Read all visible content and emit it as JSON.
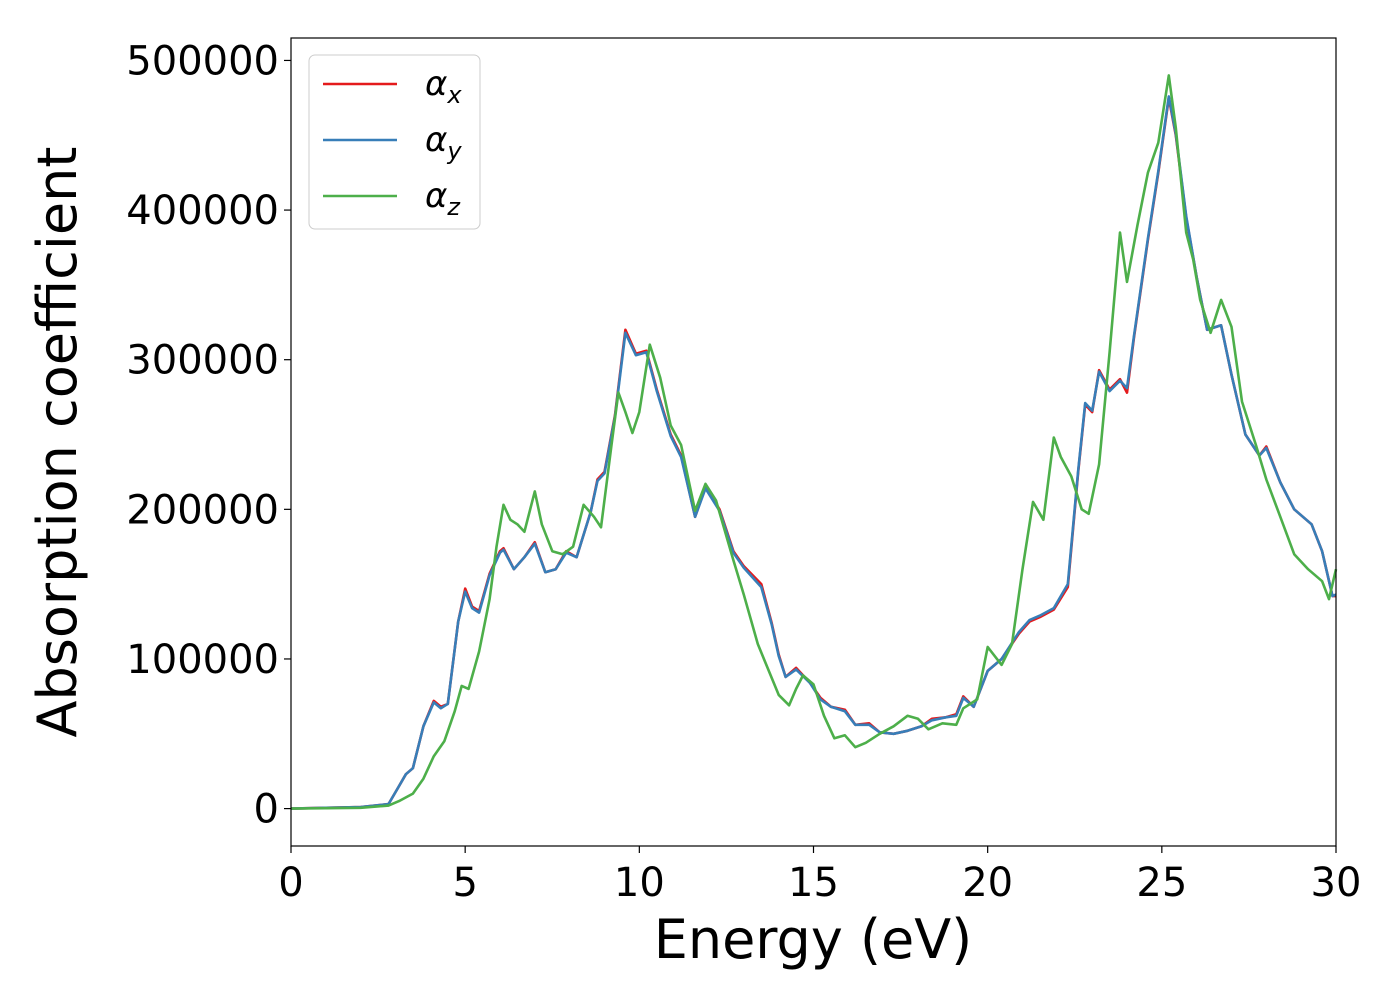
{
  "chart_data": {
    "type": "line",
    "title": "",
    "xlabel": "Energy (eV)",
    "ylabel": "Absorption coefficient",
    "xlim": [
      0,
      30
    ],
    "ylim": [
      -25000,
      515000
    ],
    "x_ticks": [
      0,
      5,
      10,
      15,
      20,
      25,
      30
    ],
    "x_tick_labels": [
      "0",
      "5",
      "10",
      "15",
      "20",
      "25",
      "30"
    ],
    "y_ticks": [
      0,
      100000,
      200000,
      300000,
      400000,
      500000
    ],
    "y_tick_labels": [
      "0",
      "100000",
      "200000",
      "300000",
      "400000",
      "500000"
    ],
    "grid": false,
    "legend_position": "top-left",
    "series": [
      {
        "name": "αx",
        "symbol": "α",
        "subscript": "x",
        "color": "#e41a1c",
        "points": [
          [
            0,
            0
          ],
          [
            2,
            1000
          ],
          [
            2.8,
            3000
          ],
          [
            3.1,
            15000
          ],
          [
            3.3,
            23000
          ],
          [
            3.5,
            27000
          ],
          [
            3.8,
            55000
          ],
          [
            4.1,
            72000
          ],
          [
            4.3,
            68000
          ],
          [
            4.5,
            70000
          ],
          [
            4.8,
            125000
          ],
          [
            5.0,
            147000
          ],
          [
            5.2,
            135000
          ],
          [
            5.4,
            132000
          ],
          [
            5.7,
            157000
          ],
          [
            6.0,
            172000
          ],
          [
            6.1,
            174000
          ],
          [
            6.4,
            160000
          ],
          [
            6.7,
            168000
          ],
          [
            7.0,
            178000
          ],
          [
            7.3,
            158000
          ],
          [
            7.6,
            160000
          ],
          [
            7.9,
            172000
          ],
          [
            8.2,
            168000
          ],
          [
            8.6,
            198000
          ],
          [
            8.8,
            220000
          ],
          [
            9.0,
            225000
          ],
          [
            9.3,
            263000
          ],
          [
            9.6,
            320000
          ],
          [
            9.9,
            304000
          ],
          [
            10.2,
            306000
          ],
          [
            10.5,
            280000
          ],
          [
            10.9,
            250000
          ],
          [
            11.2,
            236000
          ],
          [
            11.6,
            195000
          ],
          [
            11.9,
            215000
          ],
          [
            12.3,
            200000
          ],
          [
            12.7,
            172000
          ],
          [
            13.0,
            162000
          ],
          [
            13.5,
            150000
          ],
          [
            13.8,
            124000
          ],
          [
            14.0,
            103000
          ],
          [
            14.2,
            88000
          ],
          [
            14.5,
            94000
          ],
          [
            14.9,
            84000
          ],
          [
            15.2,
            74000
          ],
          [
            15.5,
            68000
          ],
          [
            15.9,
            66000
          ],
          [
            16.2,
            56000
          ],
          [
            16.6,
            57000
          ],
          [
            16.9,
            51000
          ],
          [
            17.3,
            50000
          ],
          [
            17.7,
            52000
          ],
          [
            18.1,
            55000
          ],
          [
            18.4,
            60000
          ],
          [
            18.8,
            61000
          ],
          [
            19.1,
            63000
          ],
          [
            19.3,
            75000
          ],
          [
            19.6,
            68000
          ],
          [
            20.0,
            92000
          ],
          [
            20.4,
            100000
          ],
          [
            20.9,
            117000
          ],
          [
            21.2,
            125000
          ],
          [
            21.5,
            128000
          ],
          [
            21.9,
            133000
          ],
          [
            22.3,
            148000
          ],
          [
            22.6,
            225000
          ],
          [
            22.8,
            270000
          ],
          [
            23.0,
            265000
          ],
          [
            23.2,
            293000
          ],
          [
            23.5,
            280000
          ],
          [
            23.8,
            287000
          ],
          [
            24.0,
            278000
          ],
          [
            24.2,
            315000
          ],
          [
            24.6,
            380000
          ],
          [
            24.9,
            425000
          ],
          [
            25.2,
            475000
          ],
          [
            25.4,
            450000
          ],
          [
            25.7,
            395000
          ],
          [
            26.0,
            355000
          ],
          [
            26.3,
            320000
          ],
          [
            26.7,
            323000
          ],
          [
            27.0,
            290000
          ],
          [
            27.4,
            250000
          ],
          [
            27.8,
            236000
          ],
          [
            28.0,
            242000
          ],
          [
            28.4,
            218000
          ],
          [
            28.8,
            200000
          ],
          [
            29.3,
            190000
          ],
          [
            29.6,
            172000
          ],
          [
            29.9,
            142000
          ],
          [
            30.0,
            142000
          ]
        ]
      },
      {
        "name": "αy",
        "symbol": "α",
        "subscript": "y",
        "color": "#377eb8",
        "points": [
          [
            0,
            0
          ],
          [
            2,
            1000
          ],
          [
            2.8,
            3000
          ],
          [
            3.1,
            15000
          ],
          [
            3.3,
            23000
          ],
          [
            3.5,
            27000
          ],
          [
            3.8,
            55000
          ],
          [
            4.1,
            71000
          ],
          [
            4.3,
            67000
          ],
          [
            4.5,
            70000
          ],
          [
            4.8,
            125000
          ],
          [
            5.0,
            145000
          ],
          [
            5.2,
            134000
          ],
          [
            5.4,
            131000
          ],
          [
            5.7,
            156000
          ],
          [
            6.0,
            171000
          ],
          [
            6.1,
            173000
          ],
          [
            6.4,
            160000
          ],
          [
            6.7,
            168000
          ],
          [
            7.0,
            177000
          ],
          [
            7.3,
            158000
          ],
          [
            7.6,
            160000
          ],
          [
            7.9,
            171000
          ],
          [
            8.2,
            168000
          ],
          [
            8.6,
            198000
          ],
          [
            8.8,
            219000
          ],
          [
            9.0,
            224000
          ],
          [
            9.3,
            262000
          ],
          [
            9.6,
            318000
          ],
          [
            9.9,
            303000
          ],
          [
            10.2,
            305000
          ],
          [
            10.5,
            279000
          ],
          [
            10.9,
            249000
          ],
          [
            11.2,
            235000
          ],
          [
            11.6,
            195000
          ],
          [
            11.9,
            214000
          ],
          [
            12.3,
            199000
          ],
          [
            12.7,
            171000
          ],
          [
            13.0,
            161000
          ],
          [
            13.5,
            148000
          ],
          [
            13.8,
            123000
          ],
          [
            14.0,
            102000
          ],
          [
            14.2,
            88000
          ],
          [
            14.5,
            93000
          ],
          [
            14.9,
            84000
          ],
          [
            15.2,
            73000
          ],
          [
            15.5,
            68000
          ],
          [
            15.9,
            65000
          ],
          [
            16.2,
            56000
          ],
          [
            16.6,
            56000
          ],
          [
            16.9,
            51000
          ],
          [
            17.3,
            50000
          ],
          [
            17.7,
            52000
          ],
          [
            18.1,
            55000
          ],
          [
            18.4,
            59000
          ],
          [
            18.8,
            61000
          ],
          [
            19.1,
            62000
          ],
          [
            19.3,
            74000
          ],
          [
            19.6,
            68000
          ],
          [
            20.0,
            92000
          ],
          [
            20.4,
            100000
          ],
          [
            20.9,
            118000
          ],
          [
            21.2,
            126000
          ],
          [
            21.5,
            129000
          ],
          [
            21.9,
            134000
          ],
          [
            22.3,
            150000
          ],
          [
            22.6,
            226000
          ],
          [
            22.8,
            271000
          ],
          [
            23.0,
            266000
          ],
          [
            23.2,
            292000
          ],
          [
            23.5,
            279000
          ],
          [
            23.8,
            286000
          ],
          [
            24.0,
            281000
          ],
          [
            24.2,
            316000
          ],
          [
            24.6,
            381000
          ],
          [
            24.9,
            426000
          ],
          [
            25.2,
            476000
          ],
          [
            25.4,
            451000
          ],
          [
            25.7,
            396000
          ],
          [
            26.0,
            355000
          ],
          [
            26.3,
            320000
          ],
          [
            26.7,
            323000
          ],
          [
            27.0,
            290000
          ],
          [
            27.4,
            250000
          ],
          [
            27.8,
            236000
          ],
          [
            28.0,
            241000
          ],
          [
            28.4,
            218000
          ],
          [
            28.8,
            200000
          ],
          [
            29.3,
            190000
          ],
          [
            29.6,
            172000
          ],
          [
            29.9,
            142000
          ],
          [
            30.0,
            143000
          ]
        ]
      },
      {
        "name": "αz",
        "symbol": "α",
        "subscript": "z",
        "color": "#4daf4a",
        "points": [
          [
            0,
            0
          ],
          [
            2,
            500
          ],
          [
            2.8,
            2000
          ],
          [
            3.1,
            5000
          ],
          [
            3.5,
            10000
          ],
          [
            3.8,
            20000
          ],
          [
            4.1,
            35000
          ],
          [
            4.4,
            45000
          ],
          [
            4.7,
            65000
          ],
          [
            4.9,
            82000
          ],
          [
            5.1,
            80000
          ],
          [
            5.4,
            105000
          ],
          [
            5.7,
            140000
          ],
          [
            5.9,
            175000
          ],
          [
            6.1,
            203000
          ],
          [
            6.3,
            193000
          ],
          [
            6.5,
            190000
          ],
          [
            6.7,
            185000
          ],
          [
            7.0,
            212000
          ],
          [
            7.2,
            190000
          ],
          [
            7.5,
            172000
          ],
          [
            7.8,
            170000
          ],
          [
            8.1,
            175000
          ],
          [
            8.4,
            203000
          ],
          [
            8.7,
            195000
          ],
          [
            8.9,
            188000
          ],
          [
            9.2,
            243000
          ],
          [
            9.4,
            278000
          ],
          [
            9.6,
            265000
          ],
          [
            9.8,
            251000
          ],
          [
            10.0,
            265000
          ],
          [
            10.3,
            310000
          ],
          [
            10.6,
            288000
          ],
          [
            10.9,
            256000
          ],
          [
            11.2,
            243000
          ],
          [
            11.6,
            199000
          ],
          [
            11.9,
            217000
          ],
          [
            12.2,
            206000
          ],
          [
            12.7,
            166000
          ],
          [
            13.0,
            143000
          ],
          [
            13.4,
            110000
          ],
          [
            13.7,
            93000
          ],
          [
            14.0,
            76000
          ],
          [
            14.3,
            69000
          ],
          [
            14.5,
            80000
          ],
          [
            14.7,
            89000
          ],
          [
            15.0,
            83000
          ],
          [
            15.3,
            62000
          ],
          [
            15.6,
            47000
          ],
          [
            15.9,
            49000
          ],
          [
            16.2,
            41000
          ],
          [
            16.5,
            44000
          ],
          [
            16.9,
            50000
          ],
          [
            17.3,
            55000
          ],
          [
            17.7,
            62000
          ],
          [
            18.0,
            60000
          ],
          [
            18.3,
            53000
          ],
          [
            18.7,
            57000
          ],
          [
            19.1,
            56000
          ],
          [
            19.3,
            67000
          ],
          [
            19.7,
            73000
          ],
          [
            20.0,
            108000
          ],
          [
            20.4,
            96000
          ],
          [
            20.7,
            110000
          ],
          [
            21.0,
            160000
          ],
          [
            21.3,
            205000
          ],
          [
            21.6,
            193000
          ],
          [
            21.9,
            248000
          ],
          [
            22.1,
            235000
          ],
          [
            22.4,
            222000
          ],
          [
            22.7,
            200000
          ],
          [
            22.9,
            197000
          ],
          [
            23.2,
            230000
          ],
          [
            23.5,
            305000
          ],
          [
            23.8,
            385000
          ],
          [
            24.0,
            352000
          ],
          [
            24.3,
            390000
          ],
          [
            24.6,
            425000
          ],
          [
            24.9,
            445000
          ],
          [
            25.2,
            490000
          ],
          [
            25.4,
            455000
          ],
          [
            25.7,
            385000
          ],
          [
            25.9,
            367000
          ],
          [
            26.1,
            340000
          ],
          [
            26.4,
            318000
          ],
          [
            26.7,
            340000
          ],
          [
            27.0,
            322000
          ],
          [
            27.3,
            272000
          ],
          [
            27.7,
            243000
          ],
          [
            28.0,
            220000
          ],
          [
            28.4,
            195000
          ],
          [
            28.8,
            170000
          ],
          [
            29.2,
            160000
          ],
          [
            29.6,
            152000
          ],
          [
            29.8,
            140000
          ],
          [
            30.0,
            160000
          ]
        ]
      }
    ]
  }
}
